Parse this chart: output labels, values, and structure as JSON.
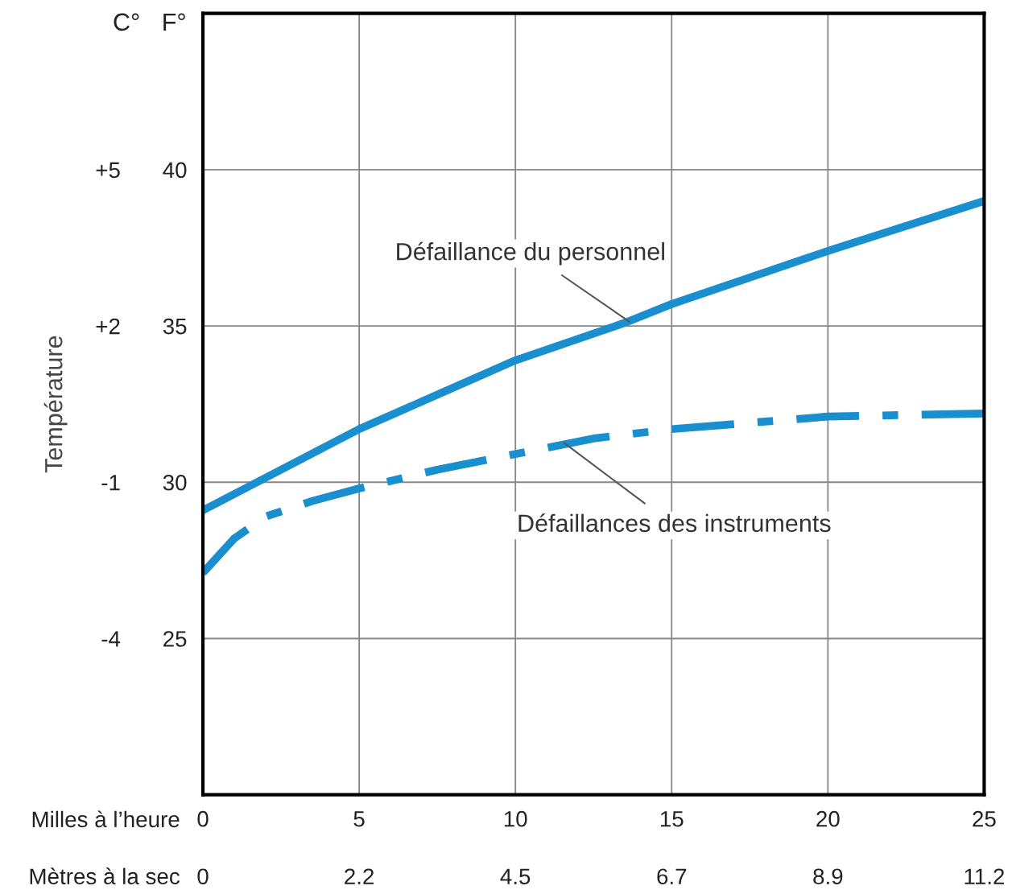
{
  "chart_data": {
    "type": "line",
    "y2label": "Température",
    "xlabel": "Milles à l’heure",
    "x2label": "Mètres à la sec",
    "xlim": [
      0,
      25
    ],
    "xticks": [
      0,
      5,
      10,
      15,
      20,
      25
    ],
    "x2lim": [
      0,
      11.176
    ],
    "x2ticks": [
      0,
      {
        "value": 2.235,
        "label": "2.2"
      },
      {
        "value": 4.47,
        "label": "4.5"
      },
      {
        "value": 6.706,
        "label": "6.7"
      },
      {
        "value": 8.941,
        "label": "8.9"
      },
      {
        "value": 11.176,
        "label": "11.2"
      }
    ],
    "ylim": [
      20,
      45
    ],
    "yticks": [
      25,
      30,
      35,
      40
    ],
    "y2lim": [
      -7,
      8
    ],
    "y2ticks": [
      {
        "value": 5,
        "label": "+5"
      },
      {
        "value": 2,
        "label": "+2"
      },
      -1,
      -4
    ],
    "grid": true,
    "series": [
      {
        "color": "#1a8fd0",
        "line_style": "solid",
        "x": [
          0,
          2.5,
          5,
          7.5,
          10,
          13.5,
          15,
          20,
          25
        ],
        "values": [
          29.1,
          30.4,
          31.7,
          32.8,
          33.9,
          35.1,
          35.7,
          37.4,
          39.0
        ]
      },
      {
        "color": "#1a8fd0",
        "line_style": "dashed",
        "x": [
          0,
          1,
          2,
          3.5,
          5,
          7.5,
          10,
          12.5,
          15,
          20,
          25
        ],
        "values": [
          27.1,
          28.2,
          28.9,
          29.4,
          29.8,
          30.4,
          30.9,
          31.4,
          31.7,
          32.1,
          32.2
        ]
      }
    ],
    "annotations": [
      {
        "text": "Défaillance du personnel",
        "x": 13.7,
        "y": 35.1
      },
      {
        "text": "Défaillances des instruments",
        "x": 11.5,
        "y": 31.3
      },
      "C°",
      "F°"
    ]
  }
}
